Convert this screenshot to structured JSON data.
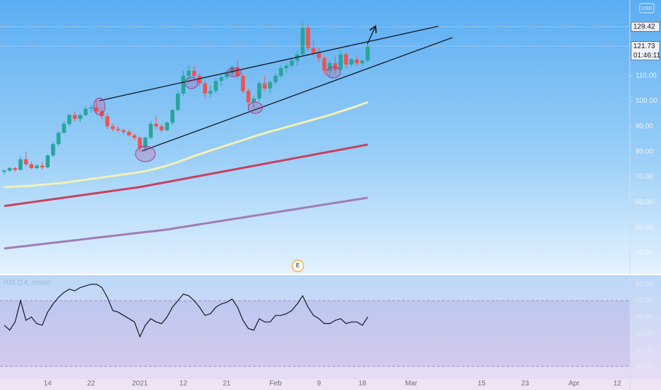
{
  "chart_data": [
    {
      "type": "candlestick",
      "categories": [
        null,
        null,
        null,
        null,
        null,
        null,
        null,
        null,
        "14",
        null,
        null,
        null,
        null,
        null,
        null,
        null,
        "22",
        null,
        null,
        null,
        null,
        null,
        null,
        null,
        null,
        "2021",
        null,
        null,
        null,
        null,
        null,
        null,
        null,
        "12",
        null,
        null,
        null,
        null,
        null,
        null,
        null,
        "21",
        null,
        null,
        null,
        null,
        null,
        null,
        null,
        null,
        "Feb",
        null,
        null,
        null,
        null,
        null,
        null,
        null,
        "9",
        null,
        null,
        null,
        null,
        null,
        null,
        null,
        "18",
        null,
        null,
        null,
        null,
        null,
        null,
        null,
        null,
        "Mar",
        null,
        null,
        null,
        null,
        null,
        null,
        null,
        null,
        null,
        null,
        null,
        null,
        "15",
        null,
        null,
        null,
        null,
        null,
        null,
        null,
        "23",
        null,
        null,
        null,
        null,
        null,
        null,
        null,
        null,
        "Apr",
        null,
        null,
        null,
        null,
        null,
        null,
        null,
        "12",
        null,
        null
      ],
      "open": [
        72,
        72.5,
        73.5,
        72.8,
        77,
        75,
        73.5,
        74.5,
        73.8,
        78.5,
        83,
        87.5,
        91,
        94.5,
        93,
        94.5,
        97,
        97.5,
        96,
        94,
        90,
        89,
        88.5,
        87.8,
        86.5,
        85.5,
        81.5,
        85.5,
        91,
        90,
        88.5,
        91.5,
        96.5,
        103,
        110,
        112,
        110,
        107,
        103,
        104,
        108,
        109.5,
        111,
        113.5,
        110,
        104,
        99.5,
        101,
        107,
        105,
        107.5,
        110,
        113,
        114,
        116,
        118.5,
        129,
        121,
        119,
        117,
        112,
        115,
        112.5,
        118.5,
        114.5,
        116.5,
        115,
        116,
        null,
        null,
        null,
        null,
        null,
        null,
        null,
        null,
        null,
        null,
        null,
        null,
        null,
        null,
        null,
        null,
        null,
        null,
        null,
        null,
        null,
        null,
        null,
        null,
        null,
        null,
        null,
        null,
        null,
        null,
        null,
        null,
        null,
        null,
        null,
        null,
        null,
        null,
        null,
        null,
        null,
        null,
        null,
        null,
        null,
        null,
        null,
        null
      ],
      "high": [
        73,
        74,
        74,
        78,
        80,
        76,
        75,
        76,
        79,
        84,
        88,
        92,
        95,
        96,
        95,
        98,
        98.5,
        100.5,
        97,
        95,
        91,
        90,
        89,
        88.5,
        87,
        86,
        86,
        92,
        94,
        91,
        92,
        97,
        104,
        112,
        114,
        114,
        111,
        108,
        106,
        109,
        110,
        112,
        114,
        116.5,
        111,
        105,
        102,
        108,
        110,
        108,
        111,
        114,
        115,
        117,
        120,
        131,
        130,
        124,
        121,
        118,
        116,
        118,
        120,
        119.5,
        117,
        118,
        116.5,
        123,
        null,
        null,
        null,
        null,
        null,
        null,
        null,
        null,
        null,
        null,
        null,
        null,
        null,
        null,
        null,
        null,
        null,
        null,
        null,
        null,
        null,
        null,
        null,
        null,
        null,
        null,
        null,
        null,
        null,
        null,
        null,
        null,
        null,
        null,
        null,
        null,
        null,
        null,
        null,
        null,
        null,
        null,
        null,
        null,
        null,
        null,
        null,
        null
      ],
      "low": [
        71,
        72,
        72,
        72.5,
        74,
        73,
        73,
        73,
        73.5,
        78,
        82,
        87,
        90,
        92,
        91.5,
        94,
        95.5,
        95,
        93,
        89,
        88,
        87.5,
        87,
        86,
        84.5,
        80,
        80,
        85,
        89,
        87.5,
        88,
        90.5,
        96,
        102,
        108.5,
        109,
        106,
        101,
        101.5,
        103,
        106,
        108.5,
        110,
        109,
        103,
        97,
        97,
        100,
        104,
        103,
        106.5,
        109,
        111,
        113,
        114,
        118,
        120,
        117.5,
        115.5,
        110.5,
        110,
        111,
        112,
        113,
        113.5,
        114,
        114,
        115.5,
        null,
        null,
        null,
        null,
        null,
        null,
        null,
        null,
        null,
        null,
        null,
        null,
        null,
        null,
        null,
        null,
        null,
        null,
        null,
        null,
        null,
        null,
        null,
        null,
        null,
        null,
        null,
        null,
        null,
        null,
        null,
        null,
        null,
        null,
        null,
        null,
        null,
        null,
        null,
        null,
        null,
        null,
        null,
        null,
        null,
        null,
        null,
        null
      ],
      "close": [
        72.5,
        73.5,
        72.8,
        77,
        75,
        73.5,
        74.5,
        73.8,
        78.5,
        83,
        87.5,
        91,
        94.5,
        93,
        94.5,
        97,
        97.5,
        96,
        94,
        90,
        89,
        88.5,
        87.8,
        86.5,
        85.5,
        81.5,
        85.5,
        91,
        90,
        88.5,
        91.5,
        96.5,
        103,
        110,
        112,
        110,
        107,
        103,
        104,
        108,
        109.5,
        111,
        113.5,
        110,
        104,
        99.5,
        101,
        107,
        105,
        107.5,
        110,
        113,
        114,
        116,
        118.5,
        129,
        121,
        119,
        117,
        112,
        115,
        112.5,
        118.5,
        114.5,
        116.5,
        115,
        116,
        121.73,
        null,
        null,
        null,
        null,
        null,
        null,
        null,
        null,
        null,
        null,
        null,
        null,
        null,
        null,
        null,
        null,
        null,
        null,
        null,
        null,
        null,
        null,
        null,
        null,
        null,
        null,
        null,
        null,
        null,
        null,
        null,
        null,
        null,
        null,
        null,
        null,
        null,
        null,
        null,
        null,
        null,
        null,
        null,
        null,
        null,
        null,
        null,
        null
      ],
      "up_color": "#26a69a",
      "down_color": "#ef5350",
      "lines": [
        {
          "color": "#f4f1b4",
          "values": [
            66.0,
            66.1,
            66.2,
            66.3,
            66.4,
            66.5,
            66.7,
            66.9,
            67.1,
            67.3,
            67.5,
            67.7,
            68.0,
            68.3,
            68.6,
            68.9,
            69.2,
            69.5,
            69.8,
            70.1,
            70.4,
            70.7,
            71.0,
            71.3,
            71.6,
            71.9,
            72.3,
            72.8,
            73.3,
            73.9,
            74.5,
            75.2,
            75.9,
            76.7,
            77.5,
            78.3,
            79.0,
            79.7,
            80.4,
            81.1,
            81.8,
            82.5,
            83.2,
            83.9,
            84.6,
            85.3,
            86.0,
            86.7,
            87.3,
            87.9,
            88.5,
            89.1,
            89.7,
            90.3,
            90.9,
            91.5,
            92.1,
            92.7,
            93.3,
            93.9,
            94.5,
            95.2,
            95.9,
            96.6,
            97.3,
            98.0,
            98.8,
            99.6,
            null,
            null,
            null,
            null,
            null,
            null,
            null,
            null,
            null,
            null,
            null,
            null,
            null,
            null,
            null,
            null,
            null,
            null,
            null,
            null,
            null,
            null,
            null,
            null,
            null,
            null,
            null,
            null,
            null,
            null,
            null,
            null,
            null,
            null,
            null,
            null,
            null,
            null,
            null,
            null,
            null,
            null,
            null,
            null,
            null,
            null,
            null,
            null
          ]
        },
        {
          "color": "#c8405f",
          "values": [
            58.5,
            58.8,
            59.1,
            59.4,
            59.7,
            60.0,
            60.3,
            60.6,
            60.9,
            61.2,
            61.5,
            61.8,
            62.1,
            62.4,
            62.7,
            63.0,
            63.3,
            63.6,
            63.9,
            64.2,
            64.5,
            64.8,
            65.1,
            65.4,
            65.7,
            66.0,
            66.4,
            66.8,
            67.2,
            67.6,
            68.0,
            68.4,
            68.8,
            69.2,
            69.6,
            70.0,
            70.4,
            70.8,
            71.2,
            71.6,
            72.0,
            72.4,
            72.8,
            73.2,
            73.6,
            74.0,
            74.4,
            74.8,
            75.2,
            75.6,
            76.0,
            76.4,
            76.8,
            77.2,
            77.6,
            78.0,
            78.4,
            78.8,
            79.2,
            79.6,
            80.0,
            80.4,
            80.8,
            81.2,
            81.6,
            82.0,
            82.4,
            82.8,
            null,
            null,
            null,
            null,
            null,
            null,
            null,
            null,
            null,
            null,
            null,
            null,
            null,
            null,
            null,
            null,
            null,
            null,
            null,
            null,
            null,
            null,
            null,
            null,
            null,
            null,
            null,
            null,
            null,
            null,
            null,
            null,
            null,
            null,
            null,
            null,
            null,
            null,
            null,
            null,
            null,
            null,
            null,
            null,
            null,
            null,
            null,
            null
          ]
        },
        {
          "color": "#a07cb8",
          "values": [
            41.7,
            41.95,
            42.2,
            42.45,
            42.7,
            42.95,
            43.2,
            43.45,
            43.7,
            43.95,
            44.2,
            44.45,
            44.7,
            44.95,
            45.2,
            45.45,
            45.7,
            45.95,
            46.2,
            46.45,
            46.7,
            46.95,
            47.2,
            47.45,
            47.7,
            47.95,
            48.2,
            48.45,
            48.7,
            48.95,
            49.2,
            49.54,
            49.88,
            50.22,
            50.56,
            50.9,
            51.24,
            51.58,
            51.92,
            52.26,
            52.6,
            52.94,
            53.28,
            53.62,
            53.96,
            54.3,
            54.64,
            54.98,
            55.32,
            55.66,
            56.0,
            56.34,
            56.68,
            57.02,
            57.36,
            57.7,
            58.04,
            58.38,
            58.72,
            59.06,
            59.4,
            59.74,
            60.08,
            60.42,
            60.76,
            61.1,
            61.44,
            61.78,
            null,
            null,
            null,
            null,
            null,
            null,
            null,
            null,
            null,
            null,
            null,
            null,
            null,
            null,
            null,
            null,
            null,
            null,
            null,
            null,
            null,
            null,
            null,
            null,
            null,
            null,
            null,
            null,
            null,
            null,
            null,
            null,
            null,
            null,
            null,
            null,
            null,
            null,
            null,
            null,
            null,
            null,
            null,
            null,
            null,
            null,
            null,
            null
          ]
        }
      ],
      "ylim": [
        32,
        140
      ],
      "yticks": [
        {
          "value": 40,
          "label": "40.00"
        },
        {
          "value": 50,
          "label": "50.00"
        },
        {
          "value": 60,
          "label": "60.00"
        },
        {
          "value": 70,
          "label": "70.00"
        },
        {
          "value": 80,
          "label": "80.00"
        },
        {
          "value": 90,
          "label": "90.00"
        },
        {
          "value": 100,
          "label": "100.00"
        },
        {
          "value": 110,
          "label": "110.00"
        }
      ],
      "price_lines": [
        129.42,
        121.73
      ],
      "countdown": "01:46:11",
      "currency": "USD",
      "event_marker": "E"
    },
    {
      "type": "line",
      "title": "RSI (14, close)",
      "color": "#131722",
      "values": [
        55,
        52,
        57,
        70,
        58,
        60,
        56,
        55,
        63,
        68,
        72,
        75,
        77,
        76,
        78,
        79,
        80,
        80,
        78,
        72,
        64,
        63,
        61,
        59,
        57,
        48,
        55,
        59,
        57,
        56,
        60,
        66,
        70,
        74,
        73,
        70,
        66,
        61,
        62,
        66,
        68,
        69,
        71,
        66,
        58,
        53,
        52,
        59,
        57,
        57,
        61,
        61,
        62,
        64,
        68,
        73,
        66,
        61,
        59,
        56,
        56,
        58,
        59,
        56,
        57,
        57,
        55,
        60,
        null,
        null,
        null,
        null,
        null,
        null,
        null,
        null,
        null,
        null,
        null,
        null,
        null,
        null,
        null,
        null,
        null,
        null,
        null,
        null,
        null,
        null,
        null,
        null,
        null,
        null,
        null,
        null,
        null,
        null,
        null,
        null,
        null,
        null,
        null,
        null,
        null,
        null,
        null,
        null,
        null,
        null,
        null,
        null,
        null,
        null,
        null,
        null
      ],
      "ylim": [
        22,
        86
      ],
      "yticks": [
        {
          "value": 30,
          "label": "30.00"
        },
        {
          "value": 40,
          "label": "40.00"
        },
        {
          "value": 50,
          "label": "50.00"
        },
        {
          "value": 60,
          "label": "60.00"
        },
        {
          "value": 70,
          "label": "70.00"
        },
        {
          "value": 80,
          "label": "80.00"
        }
      ],
      "band": [
        30,
        70
      ]
    }
  ]
}
